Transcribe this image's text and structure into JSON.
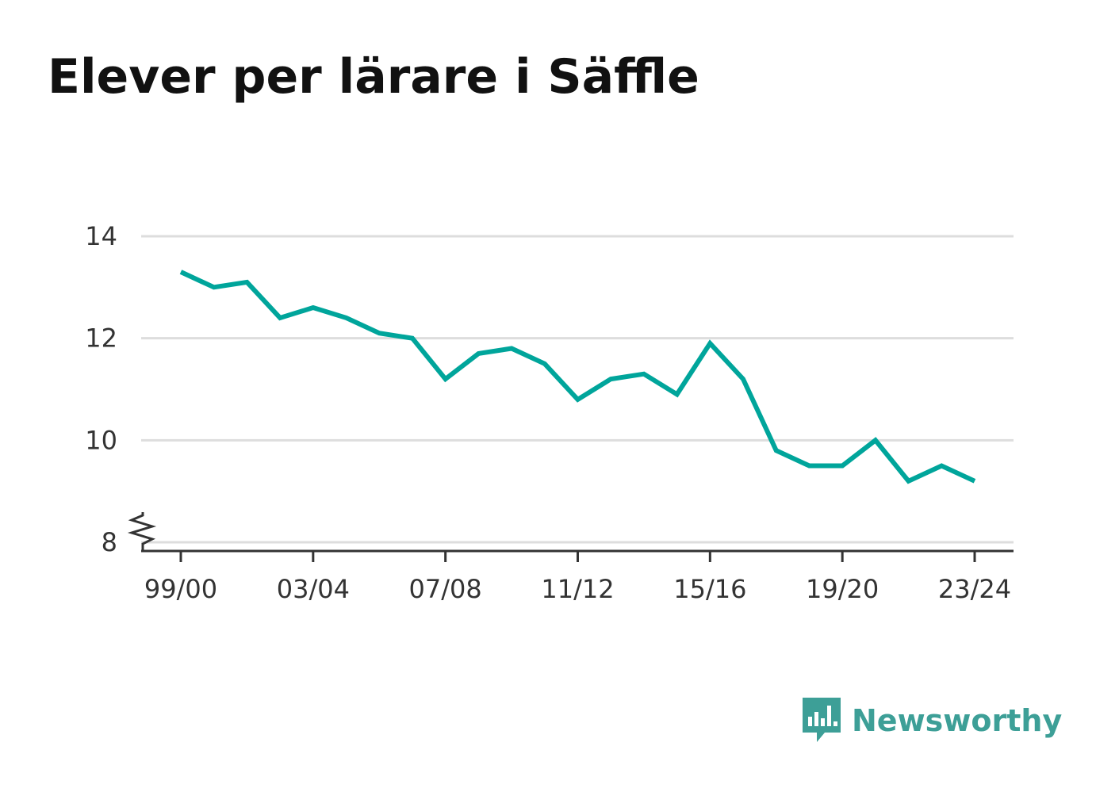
{
  "title": "Elever per lärare i Säffle",
  "brand": {
    "name": "Newsworthy",
    "color": "#3d9f97",
    "icon": "bar-chart-speech-bubble-icon"
  },
  "chart_data": {
    "type": "line",
    "title": "Elever per lärare i Säffle",
    "xlabel": "",
    "ylabel": "",
    "x": [
      "99/00",
      "00/01",
      "01/02",
      "02/03",
      "03/04",
      "04/05",
      "05/06",
      "06/07",
      "07/08",
      "08/09",
      "09/10",
      "10/11",
      "11/12",
      "12/13",
      "13/14",
      "14/15",
      "15/16",
      "16/17",
      "17/18",
      "18/19",
      "19/20",
      "20/21",
      "21/22",
      "22/23",
      "23/24"
    ],
    "x_tick_labels": [
      "99/00",
      "03/04",
      "07/08",
      "11/12",
      "15/16",
      "19/20",
      "23/24"
    ],
    "series": [
      {
        "values": [
          13.3,
          13.0,
          13.1,
          12.4,
          12.6,
          12.4,
          12.1,
          12.0,
          11.2,
          11.7,
          11.8,
          11.5,
          10.8,
          11.2,
          11.3,
          10.9,
          11.9,
          11.2,
          9.8,
          9.5,
          9.5,
          10.0,
          9.2,
          9.5,
          9.2
        ],
        "color": "#00a59b"
      }
    ],
    "ylim": [
      8,
      14
    ],
    "yticks": [
      8,
      10,
      12,
      14
    ],
    "y_axis_break": true,
    "grid": true,
    "legend": "none"
  }
}
